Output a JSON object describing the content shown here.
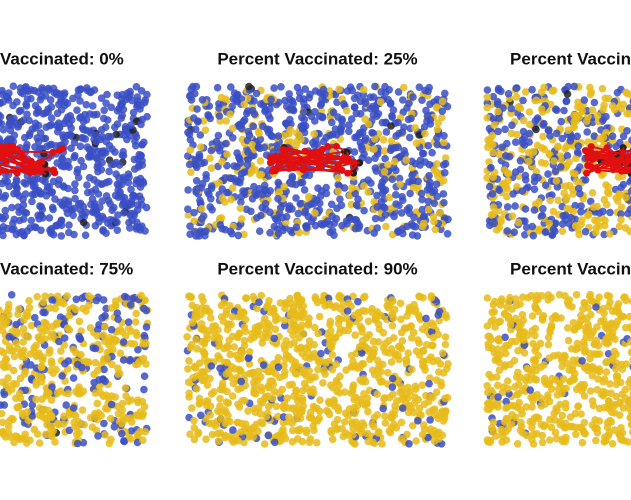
{
  "panels": [
    {
      "title": "Vaccinated: 0%"
    },
    {
      "title": "Percent Vaccinated: 25%"
    },
    {
      "title": "Percent Vaccin"
    },
    {
      "title": "Vaccinated: 75%"
    },
    {
      "title": "Percent Vaccinated: 90%"
    },
    {
      "title": "Percent Vaccin"
    }
  ],
  "colors": {
    "unvaccinated": "#3a4fc4",
    "vaccinated": "#e6bb1a",
    "infected": "#e01010",
    "dead": "#222222"
  }
}
